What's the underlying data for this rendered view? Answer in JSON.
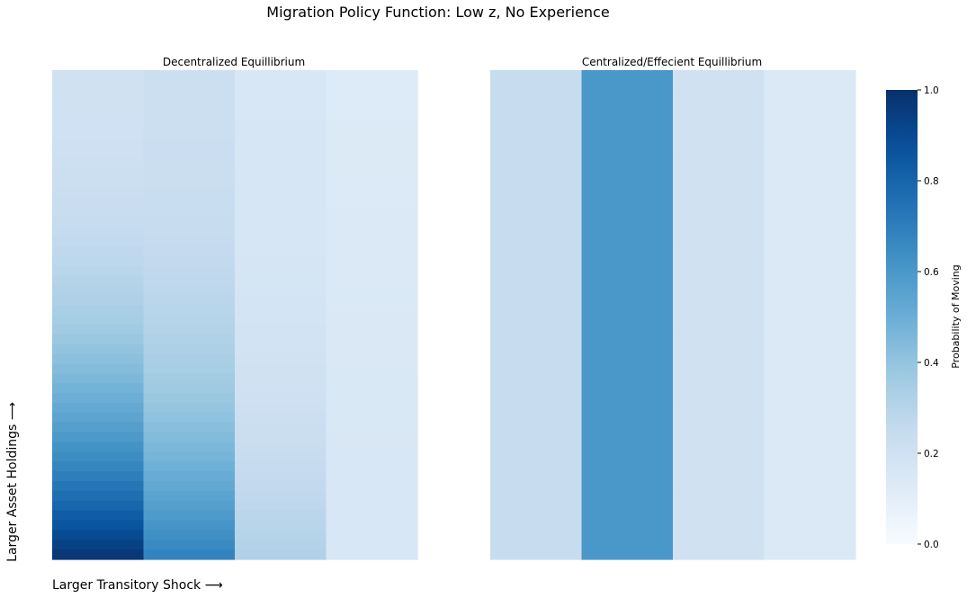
{
  "figure": {
    "suptitle": "Migration Policy Function: Low z, No Experience",
    "ylabel": "Larger Asset Holdings ⟶",
    "xlabel": "Larger Transitory Shock ⟶"
  },
  "chart_data": [
    {
      "type": "heatmap",
      "title": "Decentralized Equillibrium",
      "columns": 4,
      "rows": 50,
      "row_order": "top-to-bottom",
      "value_range": [
        0,
        1
      ],
      "column_profiles": [
        {
          "top": 0.2,
          "bottom": 0.97,
          "curve": 2.4
        },
        {
          "top": 0.22,
          "bottom": 0.68,
          "curve": 2.6
        },
        {
          "top": 0.16,
          "bottom": 0.32,
          "curve": 3.0
        },
        {
          "top": 0.13,
          "bottom": 0.16,
          "curve": 1.0
        }
      ]
    },
    {
      "type": "heatmap",
      "title": "Centralized/Effecient Equillibrium",
      "columns": 4,
      "rows": 50,
      "row_order": "top-to-bottom",
      "value_range": [
        0,
        1
      ],
      "column_profiles": [
        {
          "top": 0.24,
          "bottom": 0.24,
          "curve": 1.0
        },
        {
          "top": 0.6,
          "bottom": 0.6,
          "curve": 1.0
        },
        {
          "top": 0.2,
          "bottom": 0.2,
          "curve": 1.0
        },
        {
          "top": 0.14,
          "bottom": 0.14,
          "curve": 1.0
        }
      ]
    }
  ],
  "colorbar": {
    "label": "Probability of Moving",
    "range": [
      0,
      1
    ],
    "ticks": [
      "0.0",
      "0.2",
      "0.4",
      "0.6",
      "0.8",
      "1.0"
    ],
    "colormap": "Blues"
  }
}
